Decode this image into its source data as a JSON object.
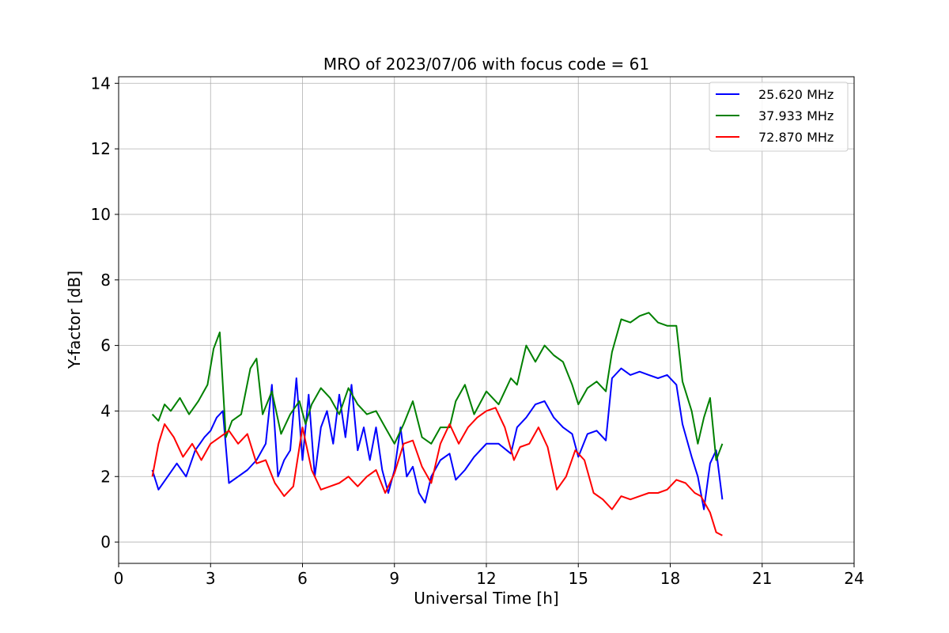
{
  "chart_data": {
    "type": "line",
    "title": "MRO of 2023/07/06 with focus code = 61",
    "xlabel": "Universal Time [h]",
    "ylabel": "Y-factor [dB]",
    "xlim": [
      0,
      24
    ],
    "ylim": [
      -0.65,
      14.2
    ],
    "xticks": [
      0,
      3,
      6,
      9,
      12,
      15,
      18,
      21,
      24
    ],
    "yticks": [
      0,
      2,
      4,
      6,
      8,
      10,
      12,
      14
    ],
    "grid": true,
    "legend_position": "top-right",
    "series": [
      {
        "name": "25.620 MHz",
        "color": "#0000ff",
        "x": [
          1.1,
          1.3,
          1.6,
          1.9,
          2.2,
          2.5,
          2.8,
          3.0,
          3.2,
          3.4,
          3.6,
          3.9,
          4.2,
          4.5,
          4.8,
          5.0,
          5.2,
          5.4,
          5.6,
          5.8,
          6.0,
          6.2,
          6.4,
          6.6,
          6.8,
          7.0,
          7.2,
          7.4,
          7.6,
          7.8,
          8.0,
          8.2,
          8.4,
          8.6,
          8.8,
          9.0,
          9.2,
          9.4,
          9.6,
          9.8,
          10.0,
          10.2,
          10.5,
          10.8,
          11.0,
          11.3,
          11.6,
          12.0,
          12.4,
          12.8,
          13.0,
          13.3,
          13.6,
          13.9,
          14.2,
          14.5,
          14.8,
          15.0,
          15.3,
          15.6,
          15.9,
          16.1,
          16.4,
          16.7,
          17.0,
          17.3,
          17.6,
          17.9,
          18.2,
          18.4,
          18.7,
          18.9,
          19.1,
          19.3,
          19.5,
          19.7
        ],
        "y": [
          2.2,
          1.6,
          2.0,
          2.4,
          2.0,
          2.8,
          3.2,
          3.4,
          3.8,
          4.0,
          1.8,
          2.0,
          2.2,
          2.5,
          3.0,
          4.8,
          2.0,
          2.5,
          2.8,
          5.0,
          2.5,
          4.5,
          2.0,
          3.5,
          4.0,
          3.0,
          4.5,
          3.2,
          4.8,
          2.8,
          3.5,
          2.5,
          3.5,
          2.2,
          1.5,
          2.2,
          3.5,
          2.0,
          2.3,
          1.5,
          1.2,
          2.0,
          2.5,
          2.7,
          1.9,
          2.2,
          2.6,
          3.0,
          3.0,
          2.7,
          3.5,
          3.8,
          4.2,
          4.3,
          3.8,
          3.5,
          3.3,
          2.6,
          3.3,
          3.4,
          3.1,
          5.0,
          5.3,
          5.1,
          5.2,
          5.1,
          5.0,
          5.1,
          4.8,
          3.6,
          2.6,
          2.0,
          1.0,
          2.4,
          2.8,
          1.3
        ]
      },
      {
        "name": "37.933 MHz",
        "color": "#008000",
        "x": [
          1.1,
          1.3,
          1.5,
          1.7,
          2.0,
          2.3,
          2.6,
          2.9,
          3.1,
          3.3,
          3.5,
          3.7,
          4.0,
          4.3,
          4.5,
          4.7,
          5.0,
          5.3,
          5.6,
          5.9,
          6.1,
          6.3,
          6.6,
          6.9,
          7.2,
          7.5,
          7.8,
          8.1,
          8.4,
          8.7,
          9.0,
          9.3,
          9.6,
          9.9,
          10.2,
          10.5,
          10.8,
          11.0,
          11.3,
          11.6,
          12.0,
          12.4,
          12.8,
          13.0,
          13.3,
          13.6,
          13.9,
          14.2,
          14.5,
          14.8,
          15.0,
          15.3,
          15.6,
          15.9,
          16.1,
          16.4,
          16.7,
          17.0,
          17.3,
          17.6,
          17.9,
          18.2,
          18.4,
          18.7,
          18.9,
          19.1,
          19.3,
          19.5,
          19.7
        ],
        "y": [
          3.9,
          3.7,
          4.2,
          4.0,
          4.4,
          3.9,
          4.3,
          4.8,
          5.9,
          6.4,
          3.2,
          3.7,
          3.9,
          5.3,
          5.6,
          3.9,
          4.6,
          3.3,
          3.9,
          4.3,
          3.6,
          4.2,
          4.7,
          4.4,
          3.9,
          4.7,
          4.2,
          3.9,
          4.0,
          3.5,
          3.0,
          3.6,
          4.3,
          3.2,
          3.0,
          3.5,
          3.5,
          4.3,
          4.8,
          3.9,
          4.6,
          4.2,
          5.0,
          4.8,
          6.0,
          5.5,
          6.0,
          5.7,
          5.5,
          4.8,
          4.2,
          4.7,
          4.9,
          4.6,
          5.8,
          6.8,
          6.7,
          6.9,
          7.0,
          6.7,
          6.6,
          6.6,
          4.9,
          4.0,
          3.0,
          3.8,
          4.4,
          2.5,
          3.0
        ]
      },
      {
        "name": "72.870 MHz",
        "color": "#ff0000",
        "x": [
          1.1,
          1.3,
          1.5,
          1.8,
          2.1,
          2.4,
          2.7,
          3.0,
          3.3,
          3.6,
          3.9,
          4.2,
          4.5,
          4.8,
          5.1,
          5.4,
          5.7,
          6.0,
          6.3,
          6.6,
          6.9,
          7.2,
          7.5,
          7.8,
          8.1,
          8.4,
          8.7,
          9.0,
          9.3,
          9.6,
          9.9,
          10.2,
          10.5,
          10.8,
          11.1,
          11.4,
          11.7,
          12.0,
          12.3,
          12.6,
          12.9,
          13.1,
          13.4,
          13.7,
          14.0,
          14.3,
          14.6,
          14.9,
          15.2,
          15.5,
          15.8,
          16.1,
          16.4,
          16.7,
          17.0,
          17.3,
          17.6,
          17.9,
          18.2,
          18.5,
          18.8,
          19.0,
          19.3,
          19.5,
          19.7
        ],
        "y": [
          2.0,
          3.0,
          3.6,
          3.2,
          2.6,
          3.0,
          2.5,
          3.0,
          3.2,
          3.4,
          3.0,
          3.3,
          2.4,
          2.5,
          1.8,
          1.4,
          1.7,
          3.5,
          2.2,
          1.6,
          1.7,
          1.8,
          2.0,
          1.7,
          2.0,
          2.2,
          1.5,
          2.1,
          3.0,
          3.1,
          2.3,
          1.8,
          3.0,
          3.6,
          3.0,
          3.5,
          3.8,
          4.0,
          4.1,
          3.5,
          2.5,
          2.9,
          3.0,
          3.5,
          2.9,
          1.6,
          2.0,
          2.8,
          2.5,
          1.5,
          1.3,
          1.0,
          1.4,
          1.3,
          1.4,
          1.5,
          1.5,
          1.6,
          1.9,
          1.8,
          1.5,
          1.4,
          0.9,
          0.3,
          0.2
        ]
      }
    ]
  }
}
